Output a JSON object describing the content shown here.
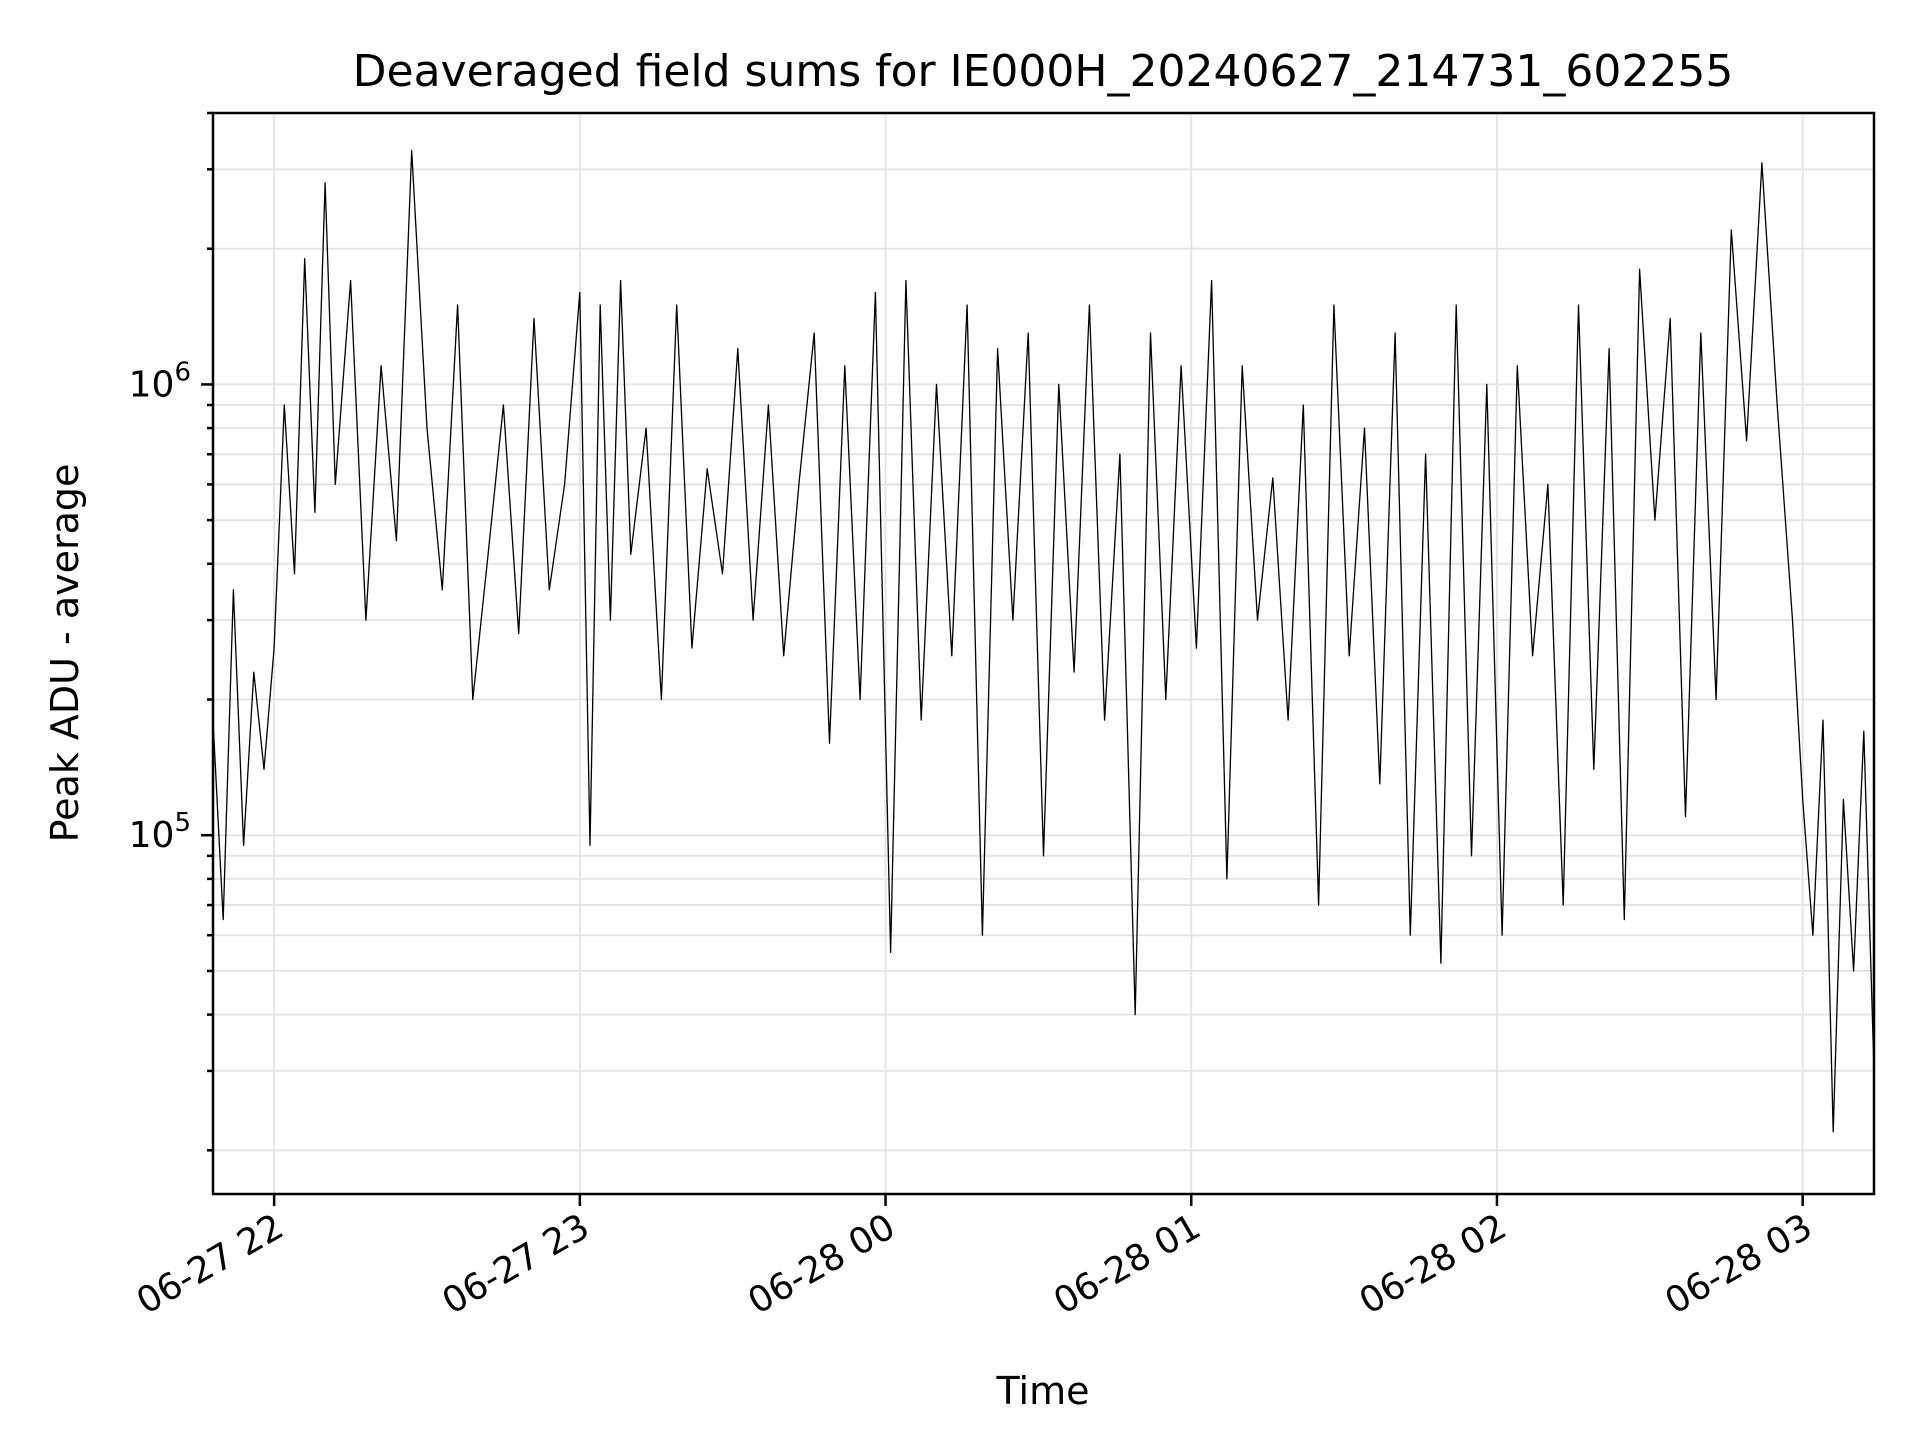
{
  "chart_data": {
    "type": "line",
    "title": "Deaveraged field sums for IE000H_20240627_214731_602255",
    "xlabel": "Time",
    "ylabel": "Peak ADU - average",
    "yscale": "log",
    "grid": true,
    "ylim": [
      16000,
      4000000
    ],
    "xlim": [
      "06-27 21:48",
      "06-28 03:14"
    ],
    "x_ticks": [
      {
        "value": "06-27 22:00",
        "label": "06-27 22"
      },
      {
        "value": "06-27 23:00",
        "label": "06-27 23"
      },
      {
        "value": "06-28 00:00",
        "label": "06-28 00"
      },
      {
        "value": "06-28 01:00",
        "label": "06-28 01"
      },
      {
        "value": "06-28 02:00",
        "label": "06-28 02"
      },
      {
        "value": "06-28 03:00",
        "label": "06-28 03"
      }
    ],
    "y_ticks": [
      {
        "value": 100000,
        "base": "10",
        "exp": "5"
      },
      {
        "value": 1000000,
        "base": "10",
        "exp": "6"
      }
    ],
    "series": [
      {
        "color": "#000000",
        "x": [
          "06-27 21:48",
          "06-27 21:50",
          "06-27 21:52",
          "06-27 21:54",
          "06-27 21:56",
          "06-27 21:58",
          "06-27 22:00",
          "06-27 22:02",
          "06-27 22:04",
          "06-27 22:06",
          "06-27 22:08",
          "06-27 22:10",
          "06-27 22:12",
          "06-27 22:15",
          "06-27 22:18",
          "06-27 22:21",
          "06-27 22:24",
          "06-27 22:27",
          "06-27 22:30",
          "06-27 22:33",
          "06-27 22:36",
          "06-27 22:39",
          "06-27 22:42",
          "06-27 22:45",
          "06-27 22:48",
          "06-27 22:51",
          "06-27 22:54",
          "06-27 22:57",
          "06-27 23:00",
          "06-27 23:02",
          "06-27 23:04",
          "06-27 23:06",
          "06-27 23:08",
          "06-27 23:10",
          "06-27 23:13",
          "06-27 23:16",
          "06-27 23:19",
          "06-27 23:22",
          "06-27 23:25",
          "06-27 23:28",
          "06-27 23:31",
          "06-27 23:34",
          "06-27 23:37",
          "06-27 23:40",
          "06-27 23:43",
          "06-27 23:46",
          "06-27 23:49",
          "06-27 23:52",
          "06-27 23:55",
          "06-27 23:58",
          "06-28 00:01",
          "06-28 00:04",
          "06-28 00:07",
          "06-28 00:10",
          "06-28 00:13",
          "06-28 00:16",
          "06-28 00:19",
          "06-28 00:22",
          "06-28 00:25",
          "06-28 00:28",
          "06-28 00:31",
          "06-28 00:34",
          "06-28 00:37",
          "06-28 00:40",
          "06-28 00:43",
          "06-28 00:46",
          "06-28 00:49",
          "06-28 00:52",
          "06-28 00:55",
          "06-28 00:58",
          "06-28 01:01",
          "06-28 01:04",
          "06-28 01:07",
          "06-28 01:10",
          "06-28 01:13",
          "06-28 01:16",
          "06-28 01:19",
          "06-28 01:22",
          "06-28 01:25",
          "06-28 01:28",
          "06-28 01:31",
          "06-28 01:34",
          "06-28 01:37",
          "06-28 01:40",
          "06-28 01:43",
          "06-28 01:46",
          "06-28 01:49",
          "06-28 01:52",
          "06-28 01:55",
          "06-28 01:58",
          "06-28 02:01",
          "06-28 02:04",
          "06-28 02:07",
          "06-28 02:10",
          "06-28 02:13",
          "06-28 02:16",
          "06-28 02:19",
          "06-28 02:22",
          "06-28 02:25",
          "06-28 02:28",
          "06-28 02:31",
          "06-28 02:34",
          "06-28 02:37",
          "06-28 02:40",
          "06-28 02:43",
          "06-28 02:46",
          "06-28 02:49",
          "06-28 02:52",
          "06-28 02:55",
          "06-28 02:58",
          "06-28 03:00",
          "06-28 03:02",
          "06-28 03:04",
          "06-28 03:06",
          "06-28 03:08",
          "06-28 03:10",
          "06-28 03:12",
          "06-28 03:14"
        ],
        "y": [
          180000,
          65000,
          350000,
          95000,
          230000,
          140000,
          260000,
          900000,
          380000,
          1900000,
          520000,
          2800000,
          600000,
          1700000,
          300000,
          1100000,
          450000,
          3300000,
          800000,
          350000,
          1500000,
          200000,
          420000,
          900000,
          280000,
          1400000,
          350000,
          600000,
          1600000,
          95000,
          1500000,
          300000,
          1700000,
          420000,
          800000,
          200000,
          1500000,
          260000,
          650000,
          380000,
          1200000,
          300000,
          900000,
          250000,
          600000,
          1300000,
          160000,
          1100000,
          200000,
          1600000,
          55000,
          1700000,
          180000,
          1000000,
          250000,
          1500000,
          60000,
          1200000,
          300000,
          1300000,
          90000,
          1000000,
          230000,
          1500000,
          180000,
          700000,
          40000,
          1300000,
          200000,
          1100000,
          260000,
          1700000,
          80000,
          1100000,
          300000,
          620000,
          180000,
          900000,
          70000,
          1500000,
          250000,
          800000,
          130000,
          1300000,
          60000,
          700000,
          52000,
          1500000,
          90000,
          1000000,
          60000,
          1100000,
          250000,
          600000,
          70000,
          1500000,
          140000,
          1200000,
          65000,
          1800000,
          500000,
          1400000,
          110000,
          1300000,
          200000,
          2200000,
          750000,
          3100000,
          900000,
          300000,
          120000,
          60000,
          180000,
          22000,
          120000,
          50000,
          170000,
          30000
        ]
      }
    ]
  }
}
